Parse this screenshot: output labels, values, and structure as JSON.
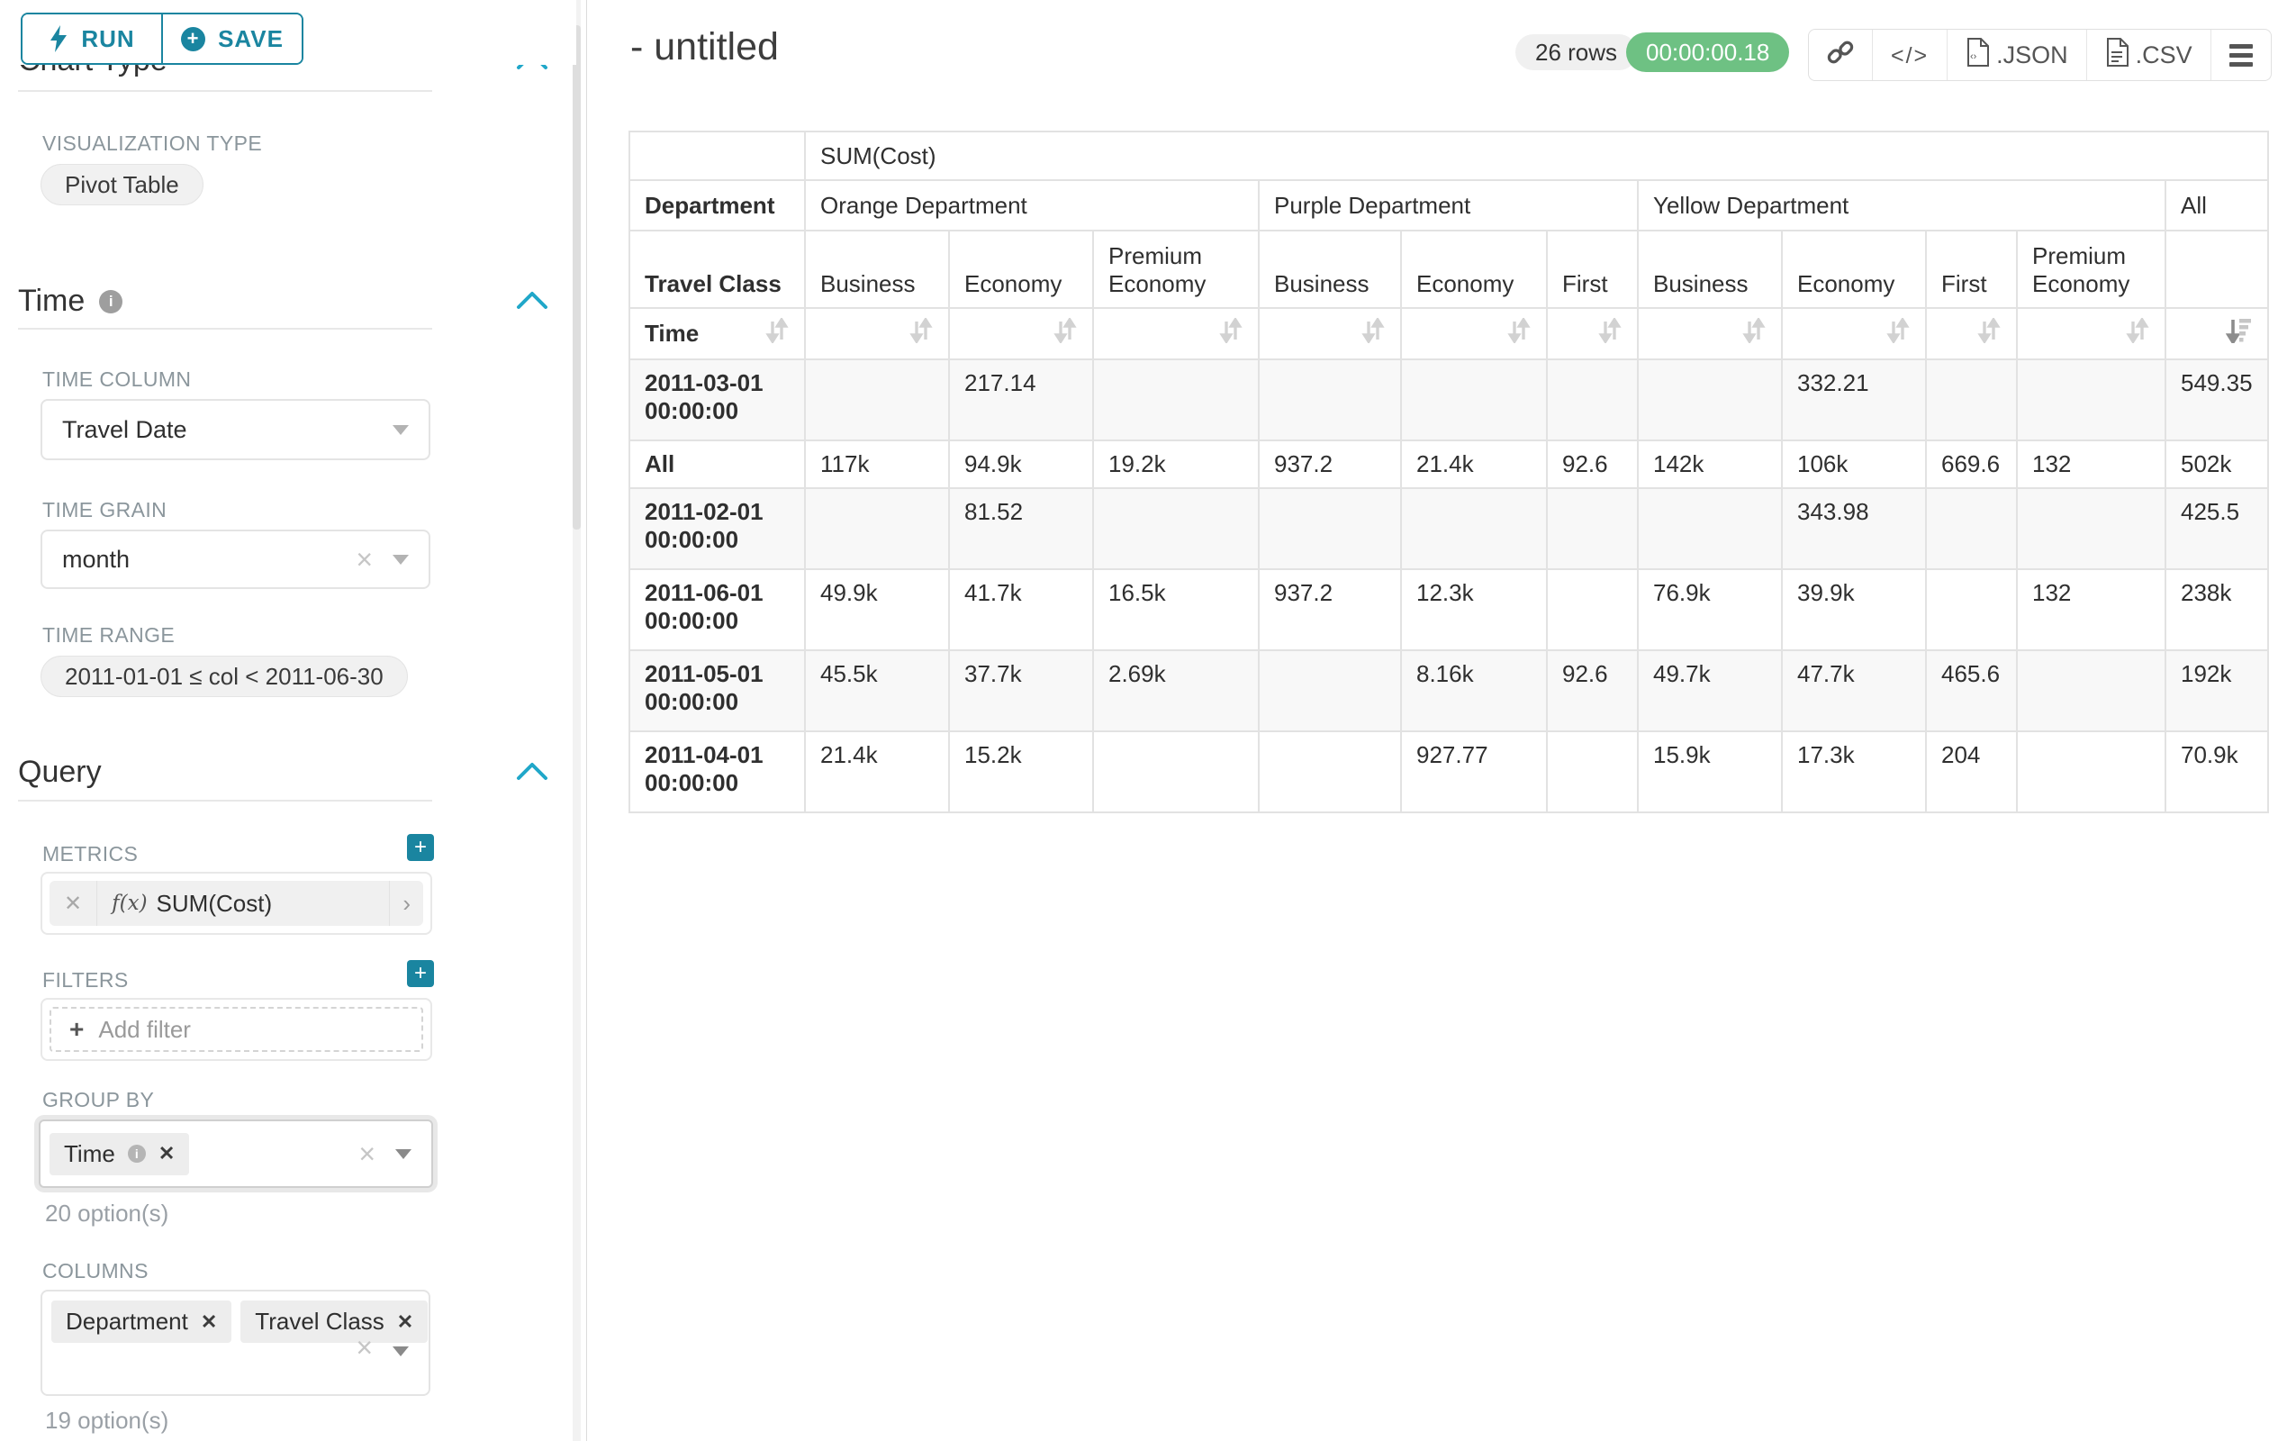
{
  "sidebar": {
    "run_label": "RUN",
    "save_label": "SAVE",
    "chart_type_section": {
      "title": "Chart Type",
      "viz_type_label": "VISUALIZATION TYPE",
      "viz_type_value": "Pivot Table"
    },
    "time_section": {
      "title": "Time",
      "time_column_label": "TIME COLUMN",
      "time_column_value": "Travel Date",
      "time_grain_label": "TIME GRAIN",
      "time_grain_value": "month",
      "time_range_label": "TIME RANGE",
      "time_range_value": "2011-01-01 ≤ col < 2011-06-30"
    },
    "query_section": {
      "title": "Query",
      "metrics_label": "METRICS",
      "metric_fx": "f(x)",
      "metric_value": "SUM(Cost)",
      "filters_label": "FILTERS",
      "add_filter_label": "Add filter",
      "group_by_label": "GROUP BY",
      "group_by_chips": [
        "Time"
      ],
      "group_by_options": "20 option(s)",
      "columns_label": "COLUMNS",
      "columns_chips": [
        "Department",
        "Travel Class"
      ],
      "columns_options": "19 option(s)"
    }
  },
  "header": {
    "title": "- untitled",
    "row_count": "26 rows",
    "timer": "00:00:00.18",
    "toolbar": [
      {
        "name": "link-button",
        "icon": "link-icon",
        "label": ""
      },
      {
        "name": "embed-code-button",
        "icon": "embed-code-icon",
        "label": ""
      },
      {
        "name": "export-json-button",
        "icon": "file-json-icon",
        "label": ".JSON"
      },
      {
        "name": "export-csv-button",
        "icon": "file-csv-icon",
        "label": ".CSV"
      },
      {
        "name": "more-menu-button",
        "icon": "menu-icon",
        "label": ""
      }
    ]
  },
  "table": {
    "metric_header": "SUM(Cost)",
    "col_axis_label": "Department",
    "col_axis2_label": "Travel Class",
    "row_axis_label": "Time",
    "col_groups": [
      {
        "label": "Orange Department",
        "cols": [
          "Business",
          "Economy",
          "Premium Economy"
        ]
      },
      {
        "label": "Purple Department",
        "cols": [
          "Business",
          "Economy",
          "First"
        ]
      },
      {
        "label": "Yellow Department",
        "cols": [
          "Business",
          "Economy",
          "First",
          "Premium Economy"
        ]
      },
      {
        "label": "All",
        "cols": [
          ""
        ]
      }
    ],
    "sorted_leaf_index": 10,
    "sort_state": "descending",
    "rows": [
      {
        "label": "2011-03-01 00:00:00",
        "values": [
          "",
          "217.14",
          "",
          "",
          "",
          "",
          "",
          "332.21",
          "",
          "",
          "549.35"
        ]
      },
      {
        "label": "All",
        "values": [
          "117k",
          "94.9k",
          "19.2k",
          "937.2",
          "21.4k",
          "92.6",
          "142k",
          "106k",
          "669.6",
          "132",
          "502k"
        ]
      },
      {
        "label": "2011-02-01 00:00:00",
        "values": [
          "",
          "81.52",
          "",
          "",
          "",
          "",
          "",
          "343.98",
          "",
          "",
          "425.5"
        ]
      },
      {
        "label": "2011-06-01 00:00:00",
        "values": [
          "49.9k",
          "41.7k",
          "16.5k",
          "937.2",
          "12.3k",
          "",
          "76.9k",
          "39.9k",
          "",
          "132",
          "238k"
        ]
      },
      {
        "label": "2011-05-01 00:00:00",
        "values": [
          "45.5k",
          "37.7k",
          "2.69k",
          "",
          "8.16k",
          "92.6",
          "49.7k",
          "47.7k",
          "465.6",
          "",
          "192k"
        ]
      },
      {
        "label": "2011-04-01 00:00:00",
        "values": [
          "21.4k",
          "15.2k",
          "",
          "",
          "927.77",
          "",
          "15.9k",
          "17.3k",
          "204",
          "",
          "70.9k"
        ]
      }
    ]
  },
  "colors": {
    "teal_primary": "#1a85a0",
    "blue_accent": "#20a7c9",
    "timer_green": "#6ec183",
    "border_gray": "#e2e2e2"
  }
}
